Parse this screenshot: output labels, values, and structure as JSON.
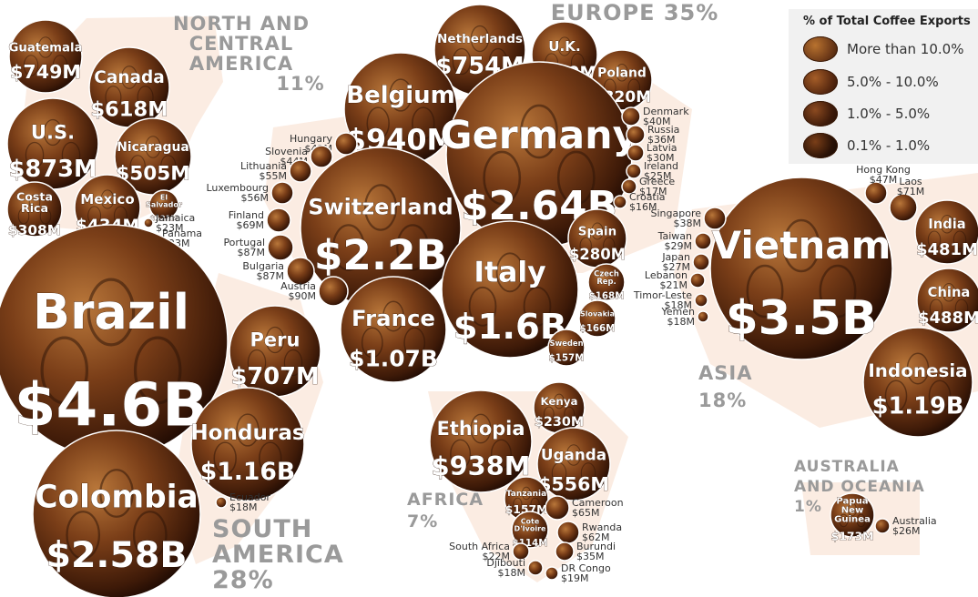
{
  "chart_data": {
    "type": "bubble-map",
    "legend": {
      "title": "% of Total Coffee Exports",
      "items": [
        {
          "label": "More than 10.0%",
          "color": "#6e3a18"
        },
        {
          "label": "5.0% - 10.0%",
          "color": "#5a2a10"
        },
        {
          "label": "1.0% - 5.0%",
          "color": "#3e1b0a"
        },
        {
          "label": "0.1% - 1.0%",
          "color": "#2a1206"
        }
      ]
    },
    "regions": [
      {
        "name": "NORTH AND\nCENTRAL\nAMERICA",
        "share": "11%"
      },
      {
        "name": "EUROPE",
        "share": "35%"
      },
      {
        "name": "ASIA",
        "share": "18%"
      },
      {
        "name": "AFRICA",
        "share": "7%"
      },
      {
        "name": "SOUTH\nAMERICA",
        "share": "28%"
      },
      {
        "name": "AUSTRALIA\nAND OCEANIA",
        "share": "1%"
      }
    ],
    "countries": [
      {
        "name": "Guatemala",
        "value": "$749M"
      },
      {
        "name": "Canada",
        "value": "$618M"
      },
      {
        "name": "U.S.",
        "value": "$873M"
      },
      {
        "name": "Nicaragua",
        "value": "$505M"
      },
      {
        "name": "Costa Rica",
        "value": "$308M"
      },
      {
        "name": "Mexico",
        "value": "$434M"
      },
      {
        "name": "El Salvador",
        "value": "$121M"
      },
      {
        "name": "Jamaica",
        "value": "$23M"
      },
      {
        "name": "Panama",
        "value": "$23M"
      },
      {
        "name": "Brazil",
        "value": "$4.6B"
      },
      {
        "name": "Peru",
        "value": "$707M"
      },
      {
        "name": "Honduras",
        "value": "$1.16B"
      },
      {
        "name": "Colombia",
        "value": "$2.58B"
      },
      {
        "name": "Ecuador",
        "value": "$18M"
      },
      {
        "name": "Netherlands",
        "value": "$754M"
      },
      {
        "name": "U.K.",
        "value": "$360M"
      },
      {
        "name": "Poland",
        "value": "$320M"
      },
      {
        "name": "Belgium",
        "value": "$940M"
      },
      {
        "name": "Germany",
        "value": "$2.64B"
      },
      {
        "name": "Switzerland",
        "value": "$2.2B"
      },
      {
        "name": "France",
        "value": "$1.07B"
      },
      {
        "name": "Italy",
        "value": "$1.6B"
      },
      {
        "name": "Spain",
        "value": "$280M"
      },
      {
        "name": "Czech Rep.",
        "value": "$168M"
      },
      {
        "name": "Slovakia",
        "value": "$166M"
      },
      {
        "name": "Sweden",
        "value": "$157M"
      },
      {
        "name": "Hungary",
        "value": "$42M"
      },
      {
        "name": "Slovenia",
        "value": "$44M"
      },
      {
        "name": "Lithuania",
        "value": "$55M"
      },
      {
        "name": "Luxembourg",
        "value": "$56M"
      },
      {
        "name": "Finland",
        "value": "$69M"
      },
      {
        "name": "Portugal",
        "value": "$87M"
      },
      {
        "name": "Bulgaria",
        "value": "$87M"
      },
      {
        "name": "Austria",
        "value": "$90M"
      },
      {
        "name": "Denmark",
        "value": "$40M"
      },
      {
        "name": "Russia",
        "value": "$36M"
      },
      {
        "name": "Latvia",
        "value": "$30M"
      },
      {
        "name": "Ireland",
        "value": "$25M"
      },
      {
        "name": "Greece",
        "value": "$17M"
      },
      {
        "name": "Croatia",
        "value": "$16M"
      },
      {
        "name": "Vietnam",
        "value": "$3.5B"
      },
      {
        "name": "India",
        "value": "$481M"
      },
      {
        "name": "China",
        "value": "$488M"
      },
      {
        "name": "Indonesia",
        "value": "$1.19B"
      },
      {
        "name": "Hong Kong",
        "value": "$47M"
      },
      {
        "name": "Laos",
        "value": "$71M"
      },
      {
        "name": "Singapore",
        "value": "$38M"
      },
      {
        "name": "Taiwan",
        "value": "$29M"
      },
      {
        "name": "Japan",
        "value": "$27M"
      },
      {
        "name": "Lebanon",
        "value": "$21M"
      },
      {
        "name": "Timor-Leste",
        "value": "$18M"
      },
      {
        "name": "Yemen",
        "value": "$18M"
      },
      {
        "name": "Ethiopia",
        "value": "$938M"
      },
      {
        "name": "Kenya",
        "value": "$230M"
      },
      {
        "name": "Uganda",
        "value": "$556M"
      },
      {
        "name": "Tanzania",
        "value": "$157M"
      },
      {
        "name": "Cameroon",
        "value": "$65M"
      },
      {
        "name": "Cote D'Ivoire",
        "value": "$114M"
      },
      {
        "name": "Rwanda",
        "value": "$62M"
      },
      {
        "name": "South Africa",
        "value": "$22M"
      },
      {
        "name": "Burundi",
        "value": "$35M"
      },
      {
        "name": "Djibouti",
        "value": "$18M"
      },
      {
        "name": "DR Congo",
        "value": "$19M"
      },
      {
        "name": "Papua New Guinea",
        "value": "$173M"
      },
      {
        "name": "Australia",
        "value": "$26M"
      }
    ]
  }
}
